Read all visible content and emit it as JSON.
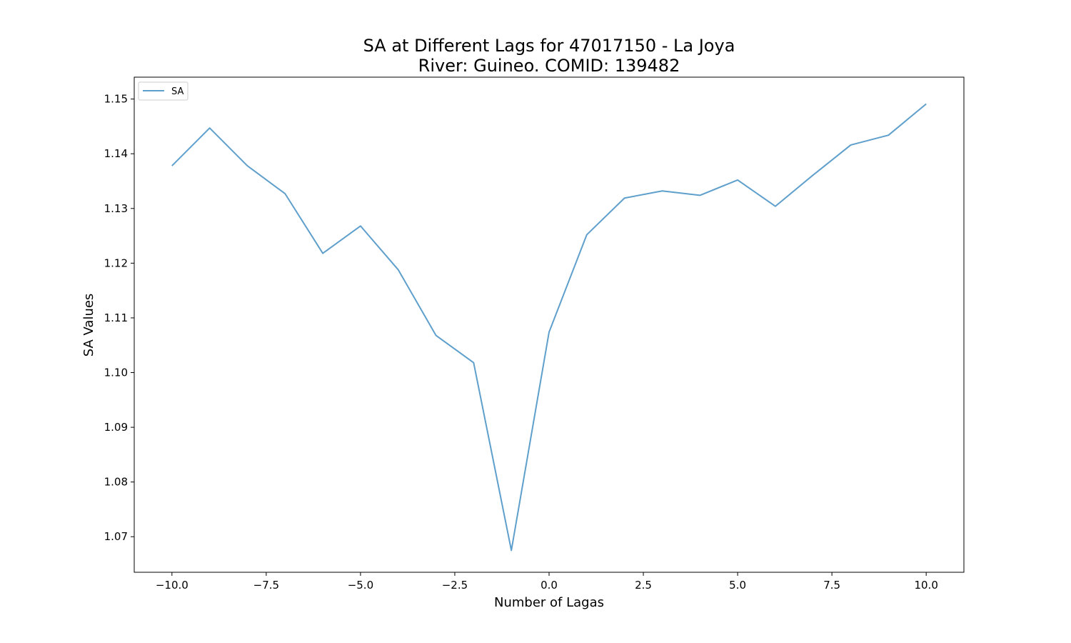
{
  "chart_data": {
    "type": "line",
    "title_line1": "SA at Different Lags for 47017150 - La Joya",
    "title_line2": "River: Guineo. COMID: 139482",
    "xlabel": "Number of Lagas",
    "ylabel": "SA Values",
    "xlim": [
      -11,
      11
    ],
    "ylim": [
      1.0635,
      1.154
    ],
    "x_ticks": [
      -10.0,
      -7.5,
      -5.0,
      -2.5,
      0.0,
      2.5,
      5.0,
      7.5,
      10.0
    ],
    "x_tick_labels": [
      "−10.0",
      "−7.5",
      "−5.0",
      "−2.5",
      "0.0",
      "2.5",
      "5.0",
      "7.5",
      "10.0"
    ],
    "y_ticks": [
      1.07,
      1.08,
      1.09,
      1.1,
      1.11,
      1.12,
      1.13,
      1.14,
      1.15
    ],
    "y_tick_labels": [
      "1.07",
      "1.08",
      "1.09",
      "1.10",
      "1.11",
      "1.12",
      "1.13",
      "1.14",
      "1.15"
    ],
    "grid": false,
    "legend_placement": "top-left",
    "series": [
      {
        "name": "SA",
        "color": "#5f9fcc",
        "x": [
          -10,
          -9,
          -8,
          -7,
          -6,
          -5,
          -4,
          -3,
          -2,
          -1,
          0,
          1,
          2,
          3,
          4,
          5,
          6,
          7,
          8,
          9,
          10
        ],
        "values": [
          1.1378,
          1.1447,
          1.1378,
          1.1327,
          1.1218,
          1.1268,
          1.1188,
          1.1068,
          1.1018,
          1.0675,
          1.1074,
          1.1252,
          1.1319,
          1.1332,
          1.1324,
          1.1352,
          1.1304,
          1.1361,
          1.1416,
          1.1434,
          1.1491
        ]
      }
    ]
  }
}
